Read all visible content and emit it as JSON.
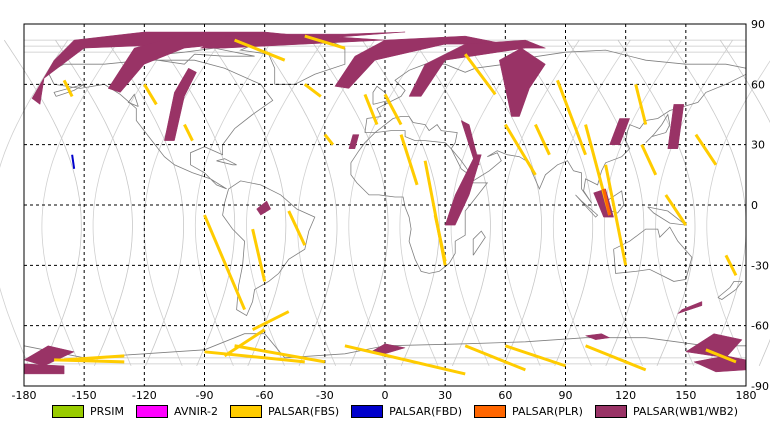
{
  "chart_data": {
    "type": "map",
    "title": "",
    "xlabel": "",
    "ylabel": "",
    "xlim": [
      -180,
      180
    ],
    "ylim": [
      -90,
      90
    ],
    "grid": true,
    "x_ticks": [
      "-180",
      "-150",
      "-120",
      "-90",
      "-60",
      "-30",
      "0",
      "30",
      "60",
      "90",
      "120",
      "150",
      "180"
    ],
    "y_ticks": [
      "90",
      "60",
      "30",
      "0",
      "-30",
      "-60",
      "-90"
    ],
    "legend_position": "bottom",
    "legend": [
      {
        "name": "PRSIM",
        "color": "#99cc00"
      },
      {
        "name": "AVNIR-2",
        "color": "#ff00ff"
      },
      {
        "name": "PALSAR(FBS)",
        "color": "#ffcc00"
      },
      {
        "name": "PALSAR(FBD)",
        "color": "#0000cc"
      },
      {
        "name": "PALSAR(PLR)",
        "color": "#ff6600"
      },
      {
        "name": "PALSAR(WB1/WB2)",
        "color": "#993366"
      }
    ],
    "swaths_wb": [
      [
        [
          -176,
          53
        ],
        [
          -165,
          72
        ],
        [
          -155,
          82
        ],
        [
          -120,
          86
        ],
        [
          -60,
          86
        ],
        [
          -40,
          84
        ],
        [
          -60,
          82
        ],
        [
          -100,
          80
        ],
        [
          -150,
          78
        ],
        [
          -170,
          63
        ],
        [
          -172,
          50
        ]
      ],
      [
        [
          -138,
          58
        ],
        [
          -125,
          78
        ],
        [
          -100,
          85
        ],
        [
          -50,
          85
        ],
        [
          -60,
          82
        ],
        [
          -100,
          78
        ],
        [
          -120,
          70
        ],
        [
          -132,
          56
        ]
      ],
      [
        [
          -92,
          78
        ],
        [
          -80,
          84
        ],
        [
          -30,
          84
        ],
        [
          0,
          82
        ],
        [
          -40,
          80
        ],
        [
          -80,
          78
        ]
      ],
      [
        [
          -25,
          59
        ],
        [
          -15,
          74
        ],
        [
          0,
          82
        ],
        [
          40,
          84
        ],
        [
          60,
          80
        ],
        [
          30,
          80
        ],
        [
          -5,
          72
        ],
        [
          -18,
          58
        ]
      ],
      [
        [
          12,
          54
        ],
        [
          20,
          70
        ],
        [
          40,
          80
        ],
        [
          70,
          82
        ],
        [
          80,
          78
        ],
        [
          70,
          78
        ],
        [
          30,
          72
        ],
        [
          18,
          54
        ]
      ],
      [
        [
          -110,
          32
        ],
        [
          -105,
          56
        ],
        [
          -98,
          68
        ],
        [
          -94,
          66
        ],
        [
          -100,
          54
        ],
        [
          -105,
          32
        ]
      ],
      [
        [
          30,
          -10
        ],
        [
          35,
          5
        ],
        [
          45,
          25
        ],
        [
          48,
          25
        ],
        [
          42,
          5
        ],
        [
          35,
          -10
        ]
      ],
      [
        [
          47,
          20
        ],
        [
          42,
          40
        ],
        [
          38,
          42
        ],
        [
          45,
          20
        ]
      ],
      [
        [
          63,
          44
        ],
        [
          57,
          72
        ],
        [
          68,
          78
        ],
        [
          80,
          70
        ],
        [
          72,
          58
        ],
        [
          67,
          44
        ]
      ],
      [
        [
          112,
          30
        ],
        [
          117,
          43
        ],
        [
          122,
          43
        ],
        [
          117,
          30
        ]
      ],
      [
        [
          109,
          -6
        ],
        [
          104,
          6
        ],
        [
          110,
          8
        ],
        [
          114,
          -6
        ]
      ],
      [
        [
          -180,
          -77
        ],
        [
          -168,
          -70
        ],
        [
          -155,
          -73
        ],
        [
          -170,
          -80
        ]
      ],
      [
        [
          -180,
          -79
        ],
        [
          -160,
          -80
        ],
        [
          -160,
          -84
        ],
        [
          -180,
          -84
        ]
      ],
      [
        [
          -7,
          -73
        ],
        [
          0,
          -69
        ],
        [
          10,
          -71
        ],
        [
          0,
          -74
        ]
      ],
      [
        [
          100,
          -65
        ],
        [
          108,
          -64
        ],
        [
          112,
          -66
        ],
        [
          105,
          -67
        ]
      ],
      [
        [
          150,
          -73
        ],
        [
          164,
          -64
        ],
        [
          178,
          -67
        ],
        [
          170,
          -76
        ]
      ],
      [
        [
          154,
          -78
        ],
        [
          170,
          -75
        ],
        [
          180,
          -77
        ],
        [
          180,
          -82
        ],
        [
          165,
          -83
        ]
      ],
      [
        [
          146,
          -54
        ],
        [
          158,
          -50
        ],
        [
          158,
          -48
        ],
        [
          148,
          -52
        ]
      ],
      [
        [
          -64,
          -2
        ],
        [
          -59,
          2
        ],
        [
          -57,
          -2
        ],
        [
          -62,
          -5
        ]
      ],
      [
        [
          -18,
          28
        ],
        [
          -16,
          35
        ],
        [
          -13,
          35
        ],
        [
          -15,
          28
        ]
      ],
      [
        [
          141,
          28
        ],
        [
          144,
          50
        ],
        [
          149,
          50
        ],
        [
          146,
          28
        ]
      ],
      [
        [
          -55,
          85
        ],
        [
          -20,
          85
        ],
        [
          10,
          86
        ],
        [
          -30,
          83
        ]
      ]
    ],
    "tracks_fbs": [
      [
        [
          -160,
          62
        ],
        [
          -156,
          54
        ]
      ],
      [
        [
          -120,
          60
        ],
        [
          -114,
          50
        ]
      ],
      [
        [
          -100,
          40
        ],
        [
          -96,
          32
        ]
      ],
      [
        [
          -90,
          -5
        ],
        [
          -70,
          -52
        ]
      ],
      [
        [
          -66,
          -12
        ],
        [
          -60,
          -38
        ]
      ],
      [
        [
          -48,
          -3
        ],
        [
          -40,
          -20
        ]
      ],
      [
        [
          -40,
          60
        ],
        [
          -32,
          54
        ]
      ],
      [
        [
          -30,
          35
        ],
        [
          -26,
          30
        ]
      ],
      [
        [
          -10,
          55
        ],
        [
          -4,
          40
        ]
      ],
      [
        [
          0,
          55
        ],
        [
          8,
          40
        ]
      ],
      [
        [
          8,
          35
        ],
        [
          16,
          10
        ]
      ],
      [
        [
          20,
          22
        ],
        [
          30,
          -30
        ]
      ],
      [
        [
          25,
          -5
        ],
        [
          30,
          -28
        ]
      ],
      [
        [
          40,
          75
        ],
        [
          55,
          55
        ]
      ],
      [
        [
          60,
          40
        ],
        [
          75,
          15
        ]
      ],
      [
        [
          75,
          40
        ],
        [
          82,
          25
        ]
      ],
      [
        [
          86,
          62
        ],
        [
          100,
          25
        ]
      ],
      [
        [
          100,
          40
        ],
        [
          112,
          -5
        ]
      ],
      [
        [
          110,
          20
        ],
        [
          120,
          -30
        ]
      ],
      [
        [
          125,
          60
        ],
        [
          130,
          40
        ]
      ],
      [
        [
          128,
          30
        ],
        [
          135,
          15
        ]
      ],
      [
        [
          140,
          5
        ],
        [
          150,
          -10
        ]
      ],
      [
        [
          155,
          35
        ],
        [
          165,
          20
        ]
      ],
      [
        [
          170,
          -25
        ],
        [
          175,
          -35
        ]
      ],
      [
        [
          -75,
          82
        ],
        [
          -50,
          72
        ]
      ],
      [
        [
          -40,
          84
        ],
        [
          -20,
          78
        ]
      ],
      [
        [
          -165,
          -77
        ],
        [
          -130,
          -78
        ]
      ],
      [
        [
          -90,
          -73
        ],
        [
          -40,
          -78
        ]
      ],
      [
        [
          -75,
          -70
        ],
        [
          -30,
          -78
        ]
      ],
      [
        [
          -20,
          -70
        ],
        [
          40,
          -84
        ]
      ],
      [
        [
          40,
          -70
        ],
        [
          70,
          -82
        ]
      ],
      [
        [
          60,
          -70
        ],
        [
          90,
          -80
        ]
      ],
      [
        [
          100,
          -70
        ],
        [
          130,
          -82
        ]
      ],
      [
        [
          -48,
          -53
        ],
        [
          -66,
          -62
        ]
      ],
      [
        [
          -60,
          -62
        ],
        [
          -80,
          -75
        ]
      ],
      [
        [
          -130,
          -75
        ],
        [
          -160,
          -77
        ]
      ],
      [
        [
          160,
          -72
        ],
        [
          175,
          -78
        ]
      ]
    ],
    "tracks_fbd": [
      [
        [
          -156,
          25
        ],
        [
          -155,
          18
        ]
      ]
    ],
    "tracks_plr": [
      [
        [
          109,
          8
        ],
        [
          112,
          -5
        ]
      ]
    ]
  }
}
